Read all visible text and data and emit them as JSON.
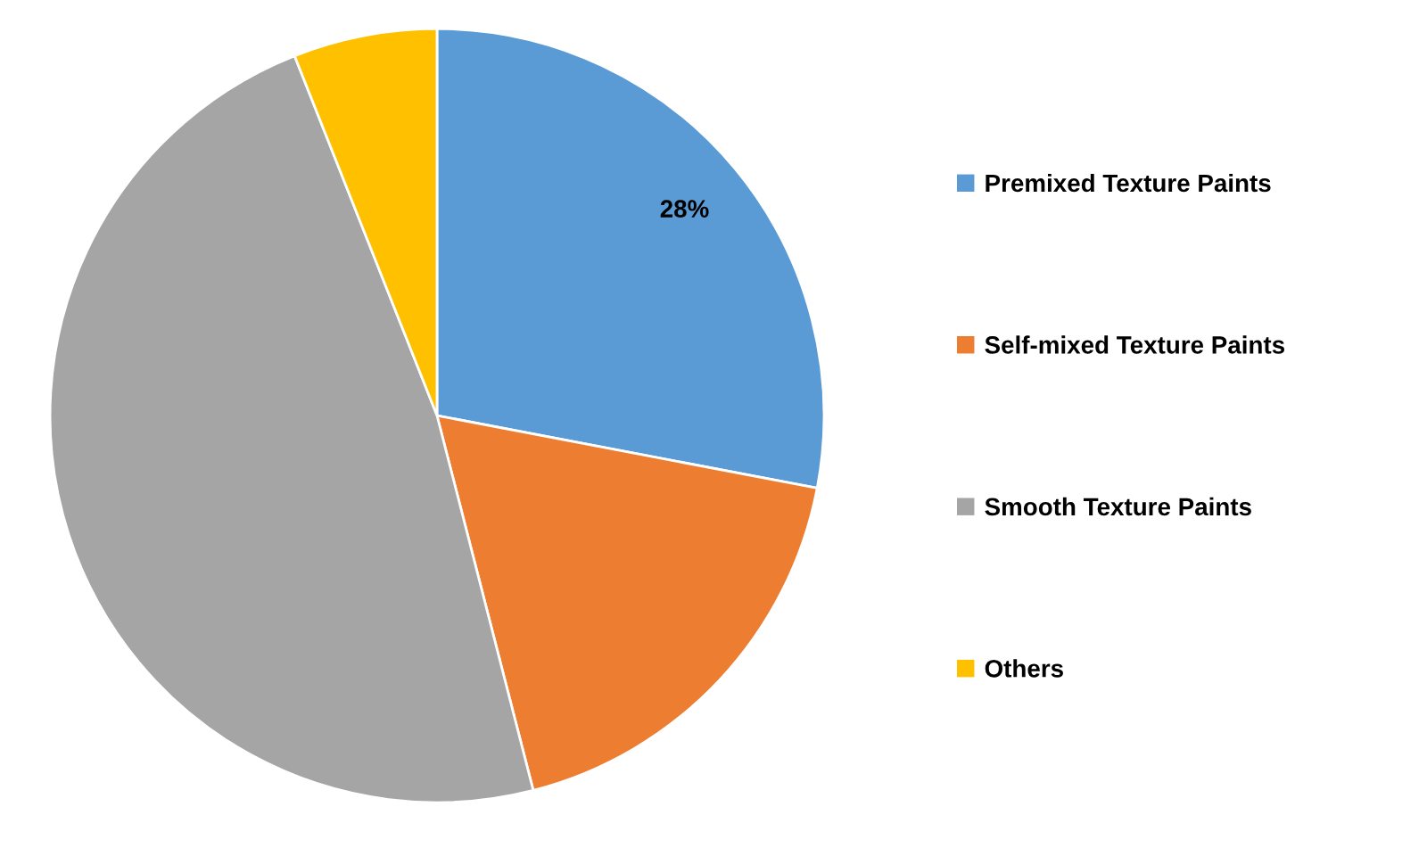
{
  "chart_data": {
    "type": "pie",
    "categories": [
      "Premixed Texture Paints",
      "Self-mixed Texture Paints",
      "Smooth Texture Paints",
      "Others"
    ],
    "values": [
      28,
      18,
      48,
      6
    ],
    "colors": [
      "#5b9bd5",
      "#ed7d31",
      "#a5a5a5",
      "#ffc000"
    ],
    "value_labels": [
      "28%",
      null,
      null,
      null
    ],
    "legend": "right"
  }
}
